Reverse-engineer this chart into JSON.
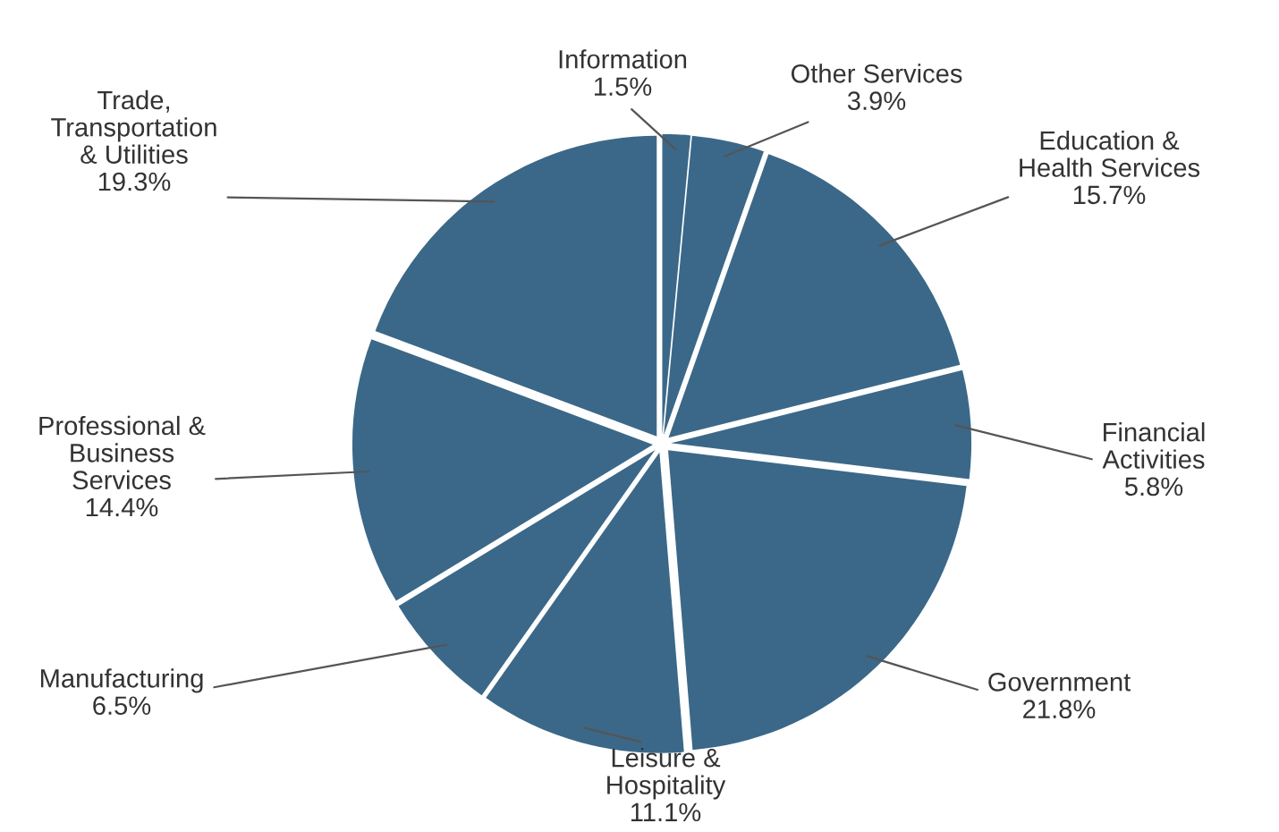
{
  "chart_data": {
    "type": "pie",
    "categories": [
      "Information",
      "Other Services",
      "Education &\nHealth Services",
      "Financial\nActivities",
      "Government",
      "Leisure &\nHospitality",
      "Manufacturing",
      "Professional &\nBusiness\nServices",
      "Trade,\nTransportation\n& Utilities"
    ],
    "values": [
      1.5,
      3.9,
      15.7,
      5.8,
      21.8,
      11.1,
      6.5,
      14.4,
      19.3
    ],
    "value_labels": [
      "1.5%",
      "3.9%",
      "15.7%",
      "5.8%",
      "21.8%",
      "11.1%",
      "6.5%",
      "14.4%",
      "19.3%"
    ],
    "colors": [
      "#3b6888",
      "#3b6888",
      "#3b6888",
      "#3b6888",
      "#3b6888",
      "#3b6888",
      "#3b6888",
      "#3b6888",
      "#3b6888"
    ]
  }
}
